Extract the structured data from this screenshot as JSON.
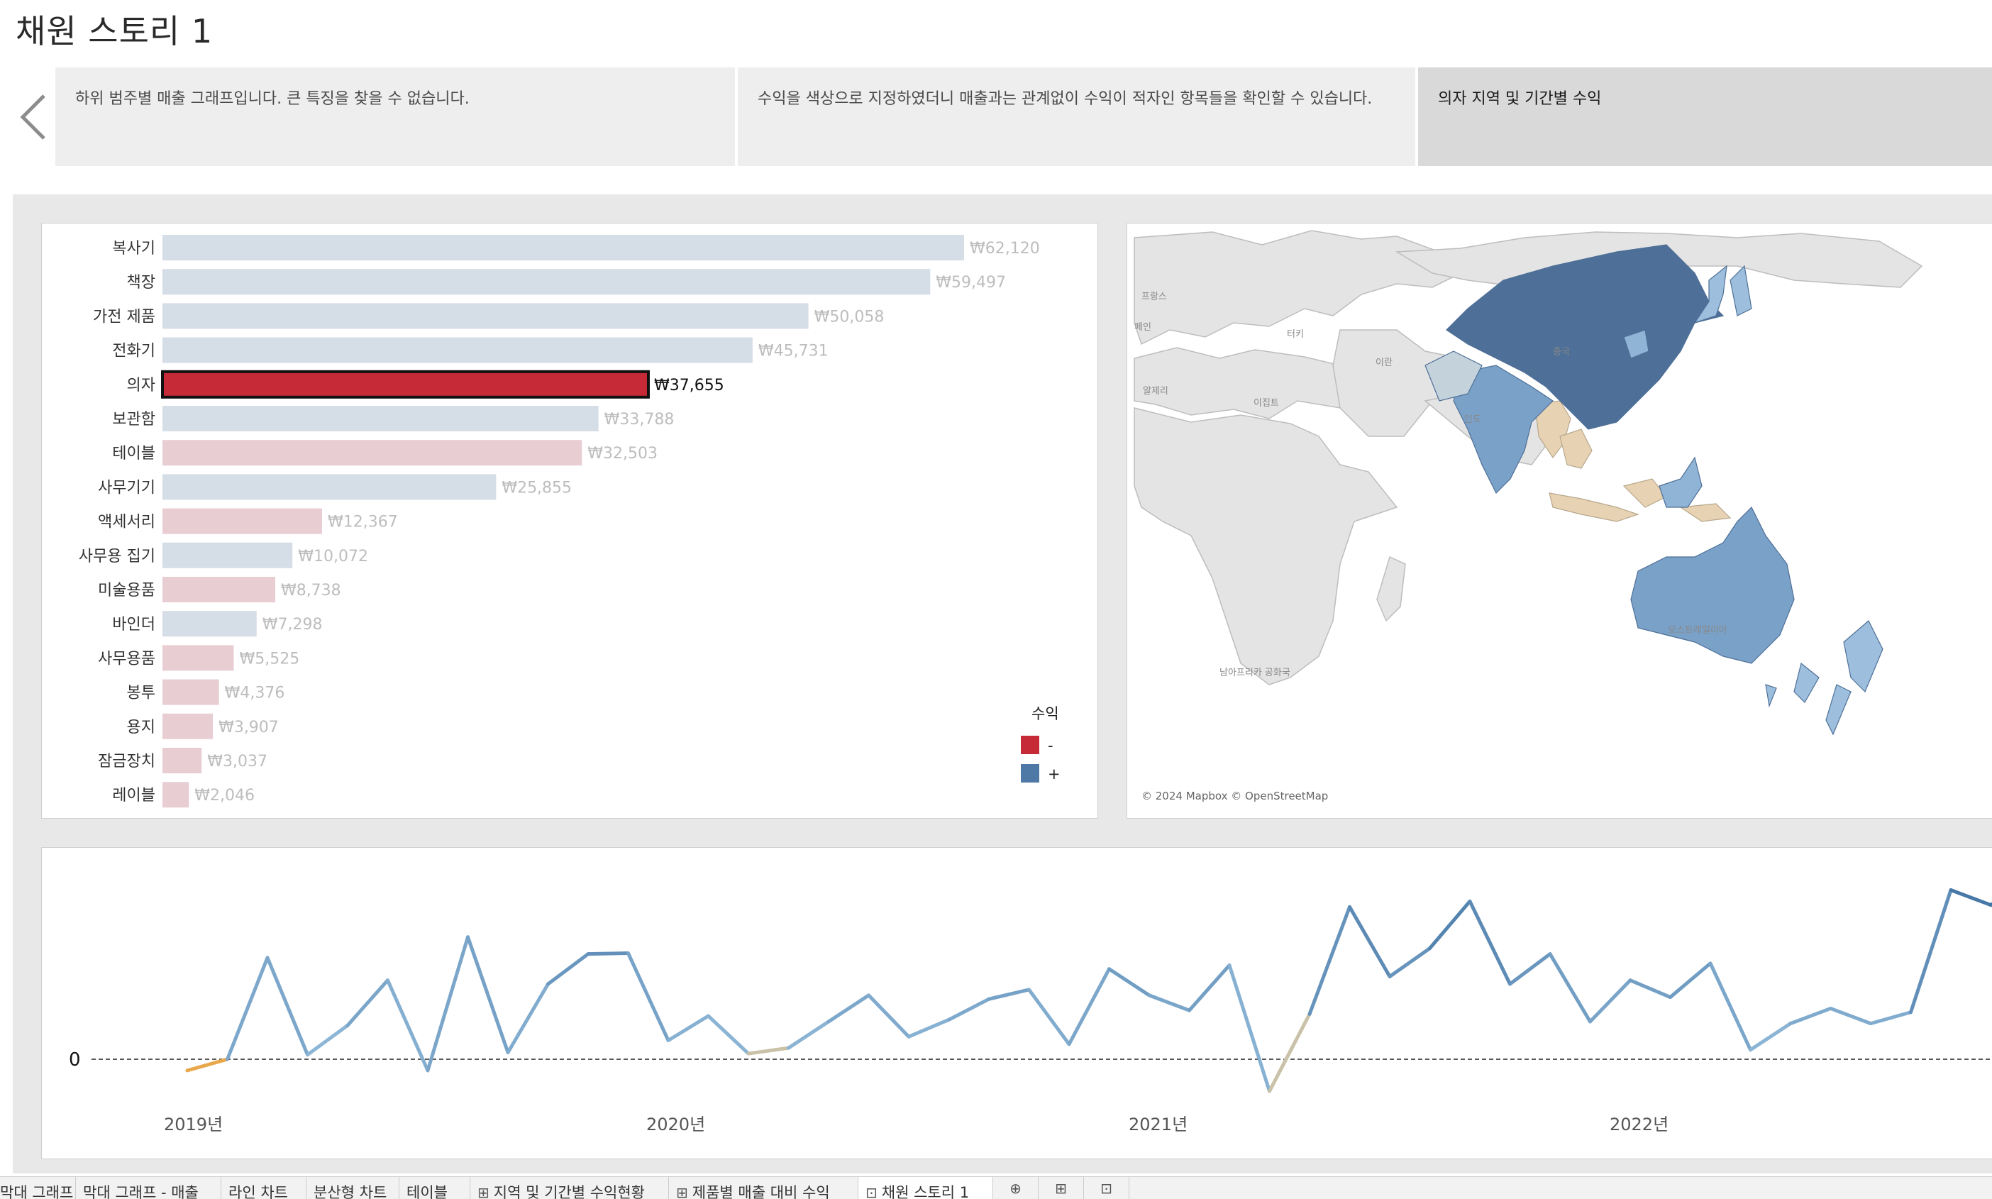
{
  "story": {
    "title": "채원 스토리 1"
  },
  "captions": [
    {
      "text": "하위 범주별 매출 그래프입니다. 큰 특징을 찾을 수 없습니다."
    },
    {
      "text": "수익을 색상으로 지정하였더니 매출과는 관계없이 수익이 적자인 항목들을 확인할 수 있습니다."
    },
    {
      "text": "의자 지역 및 기간별 수익"
    }
  ],
  "colors": {
    "negative": "#c62a36",
    "positive": "#4e79a7",
    "neg_light": "#e8cdd3",
    "pos_light": "#d5dde6",
    "neg_map": "#e8d2b4",
    "pos_map": "#4e6f97"
  },
  "chart_data": [
    {
      "type": "bar",
      "orientation": "horizontal",
      "categories": [
        "복사기",
        "책장",
        "가전 제품",
        "전화기",
        "의자",
        "보관함",
        "테이블",
        "사무기기",
        "액세서리",
        "사무용 집기",
        "미술용품",
        "바인더",
        "사무용품",
        "봉투",
        "용지",
        "잠금장치",
        "레이블"
      ],
      "values": [
        62120,
        59497,
        50058,
        45731,
        37655,
        33788,
        32503,
        25855,
        12367,
        10072,
        8738,
        7298,
        5525,
        4376,
        3907,
        3037,
        2046
      ],
      "labels": [
        "₩62,120",
        "₩59,497",
        "₩50,058",
        "₩45,731",
        "₩37,655",
        "₩33,788",
        "₩32,503",
        "₩25,855",
        "₩12,367",
        "₩10,072",
        "₩8,738",
        "₩7,298",
        "₩5,525",
        "₩4,376",
        "₩3,907",
        "₩3,037",
        "₩2,046"
      ],
      "profit_sign": [
        "+",
        "+",
        "+",
        "+",
        "-",
        "+",
        "-",
        "+",
        "-",
        "+",
        "-",
        "+",
        "-",
        "-",
        "-",
        "-",
        "-"
      ],
      "highlighted": "의자",
      "legend": {
        "title": "수익",
        "items": [
          "-",
          "+"
        ]
      }
    },
    {
      "type": "line",
      "x_labels": [
        "2019년",
        "2020년",
        "2021년",
        "2022년"
      ],
      "zero_label": "0",
      "y": [
        -30,
        0,
        270,
        12,
        90,
        210,
        -30,
        325,
        18,
        200,
        280,
        282,
        50,
        115,
        15,
        30,
        100,
        170,
        60,
        105,
        160,
        185,
        40,
        240,
        170,
        130,
        250,
        -85,
        120,
        405,
        220,
        295,
        420,
        200,
        280,
        100,
        210,
        165,
        255,
        25,
        95,
        135,
        95,
        125,
        450,
        410,
        490,
        275
      ]
    }
  ],
  "map": {
    "attribution": "© 2024 Mapbox © OpenStreetMap",
    "country_labels": [
      "프랑스",
      "페인",
      "터키",
      "이란",
      "알제리",
      "이집트",
      "중국",
      "인도",
      "오스트레일리아",
      "남아프리카 공화국"
    ]
  },
  "tabs": [
    {
      "label": "막대 그래프",
      "icon": ""
    },
    {
      "label": "막대 그래프 - 매출",
      "icon": ""
    },
    {
      "label": "라인 차트",
      "icon": ""
    },
    {
      "label": "분산형 차트",
      "icon": ""
    },
    {
      "label": "테이블",
      "icon": ""
    },
    {
      "label": "지역 및 기간별 수익현황",
      "icon": "dashboard-icon"
    },
    {
      "label": "제품별 매출 대비 수익",
      "icon": "dashboard-icon"
    },
    {
      "label": "채원 스토리 1",
      "icon": "story-icon"
    }
  ]
}
